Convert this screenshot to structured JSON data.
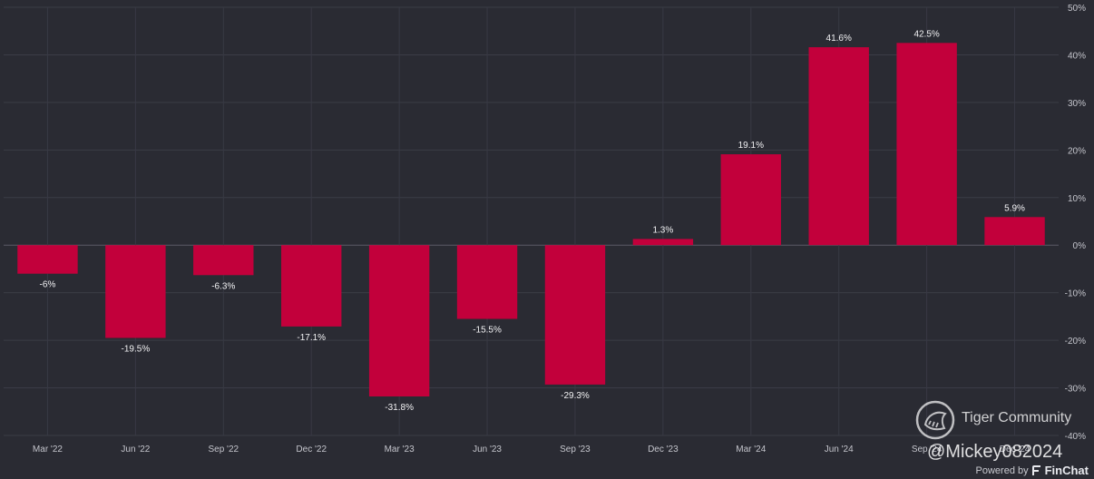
{
  "chart_data": {
    "type": "bar",
    "categories": [
      "Mar '22",
      "Jun '22",
      "Sep '22",
      "Dec '22",
      "Mar '23",
      "Jun '23",
      "Sep '23",
      "Dec '23",
      "Mar '24",
      "Jun '24",
      "Sep '24",
      "Dec '24"
    ],
    "values": [
      -6,
      -19.5,
      -6.3,
      -17.1,
      -31.8,
      -15.5,
      -29.3,
      1.3,
      19.1,
      41.6,
      42.5,
      5.9
    ],
    "data_labels": [
      "-6%",
      "-19.5%",
      "-6.3%",
      "-17.1%",
      "-31.8%",
      "-15.5%",
      "-29.3%",
      "1.3%",
      "19.1%",
      "41.6%",
      "42.5%",
      "5.9%"
    ],
    "ylim": [
      -40,
      50
    ],
    "yticks": [
      50,
      40,
      30,
      20,
      10,
      0,
      -10,
      -20,
      -30,
      -40
    ],
    "ytick_labels": [
      "50%",
      "40%",
      "30%",
      "20%",
      "10%",
      "0%",
      "-10%",
      "-20%",
      "-30%",
      "-40%"
    ],
    "y_axis_position": "right",
    "grid": true,
    "bar_color": "#c2003b",
    "background_color": "#2a2b33"
  },
  "watermark": {
    "community": "Tiger Community",
    "handle": "@Mickey082024"
  },
  "footer": {
    "powered_by": "Powered by",
    "brand": "FinChat"
  }
}
